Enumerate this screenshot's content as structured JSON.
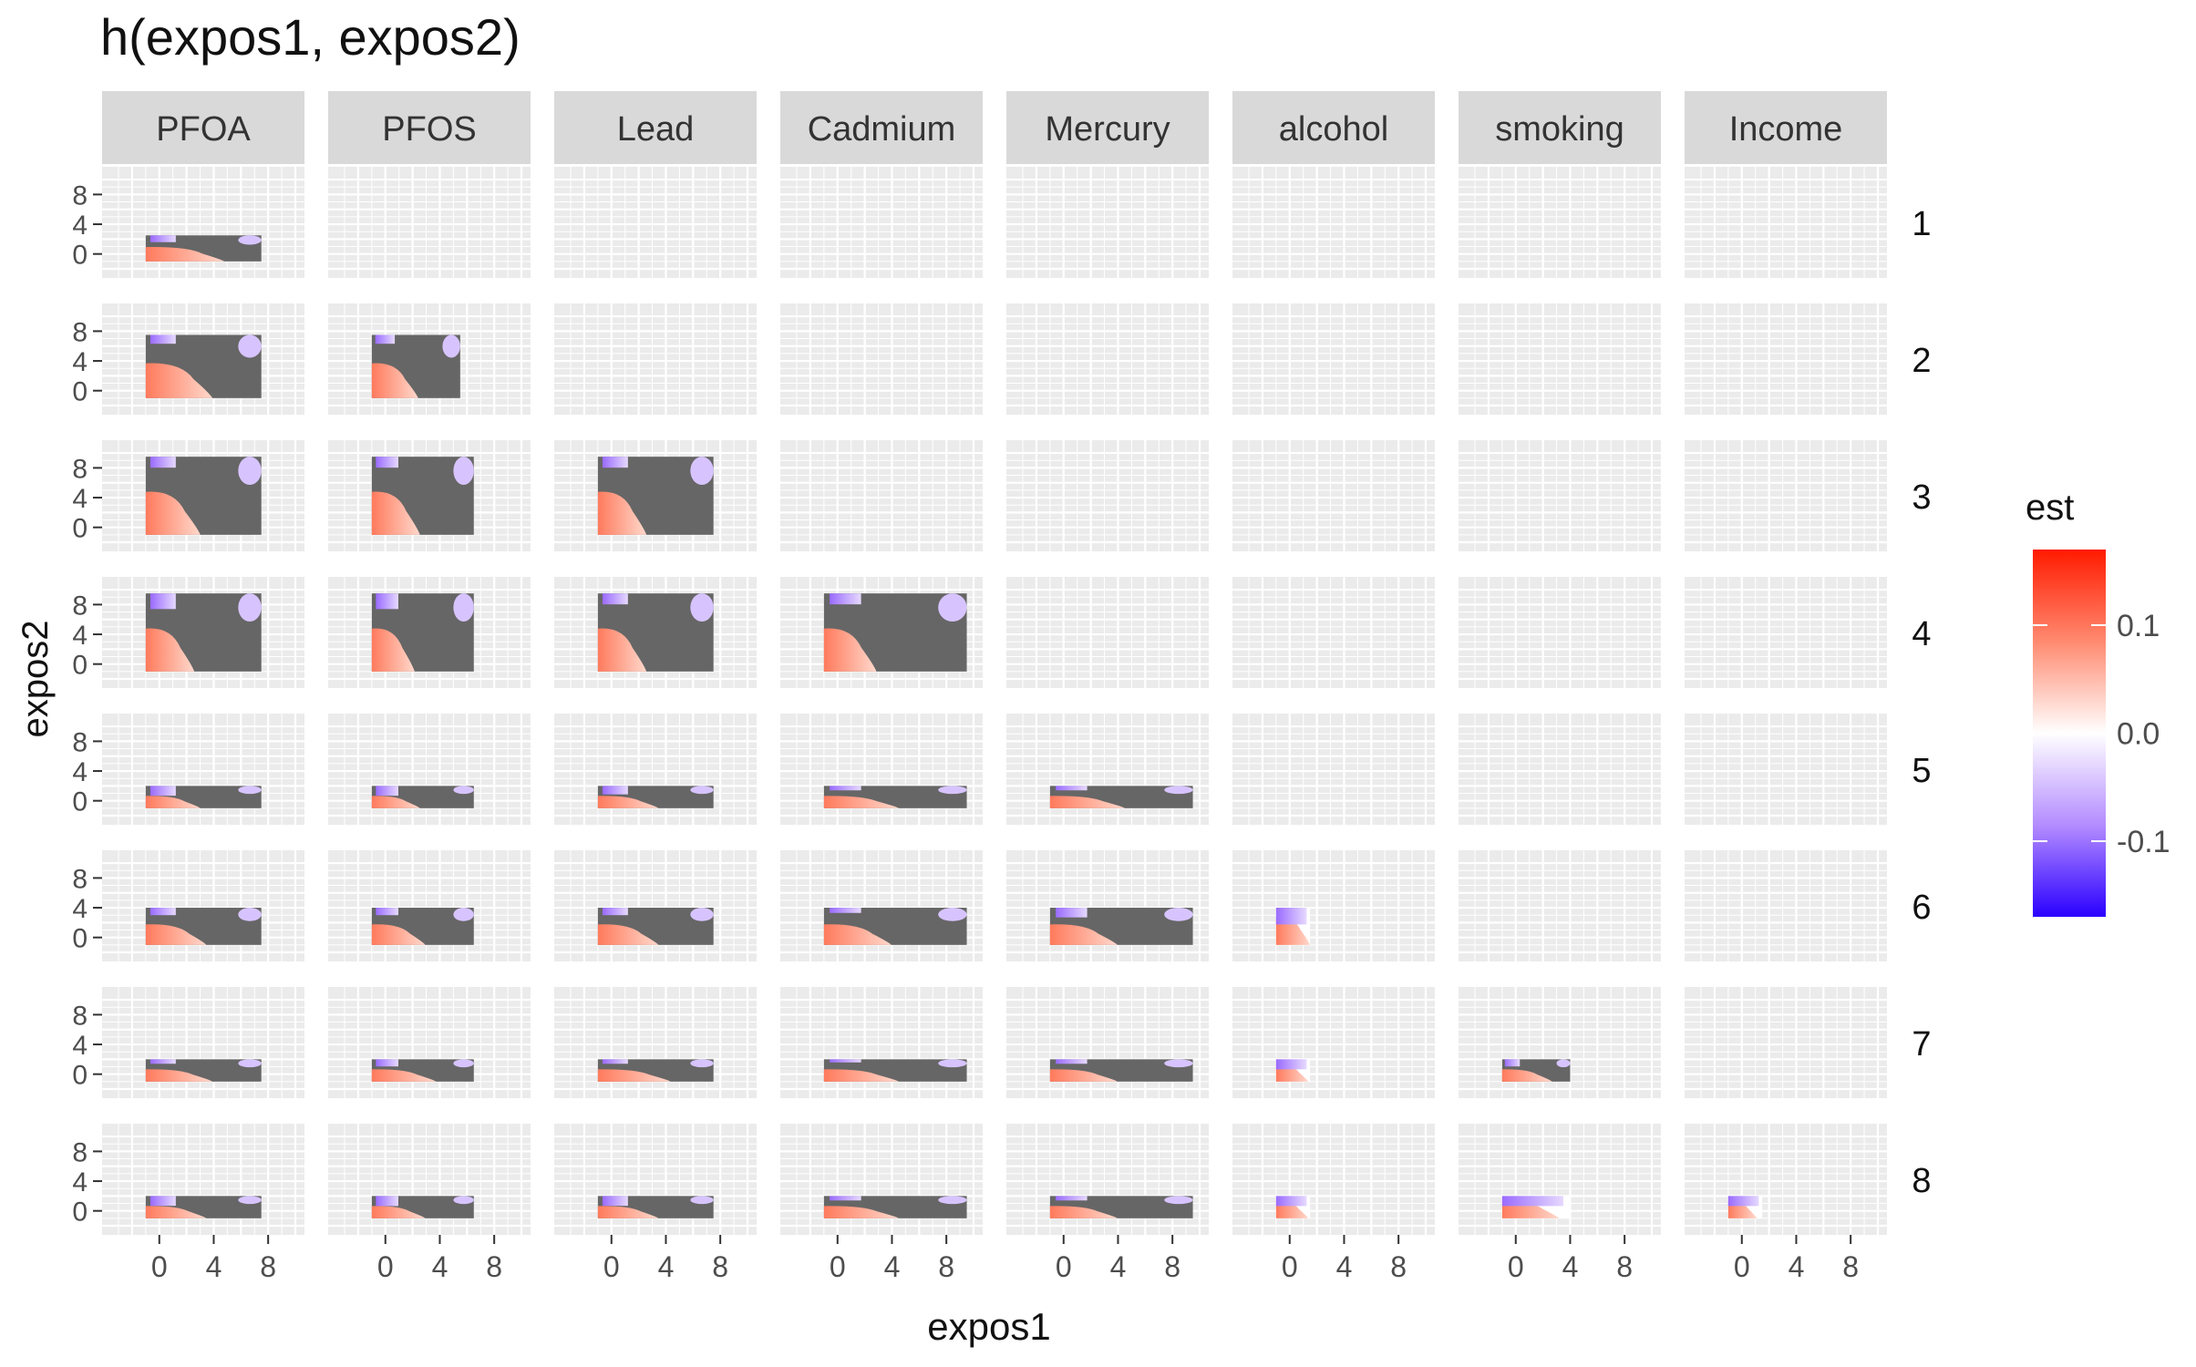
{
  "chart_data": {
    "type": "heatmap",
    "title": "h(expos1, expos2)",
    "xlabel": "expos1",
    "ylabel": "expos2",
    "column_labels": [
      "PFOA",
      "PFOS",
      "Lead",
      "Cadmium",
      "Mercury",
      "alcohol",
      "smoking",
      "Income"
    ],
    "row_labels": [
      "1",
      "2",
      "3",
      "4",
      "5",
      "6",
      "7",
      "8"
    ],
    "x_ticks": [
      "0",
      "4",
      "8"
    ],
    "y_ticks": [
      "8",
      "4",
      "0"
    ],
    "xlim": [
      -3,
      10
    ],
    "ylim": [
      -2,
      10.5
    ],
    "grid": true,
    "legend": {
      "title": "est",
      "position": "right",
      "ticks": [
        {
          "label": "0.1",
          "value": 0.1
        },
        {
          "label": "0.0",
          "value": 0.0
        },
        {
          "label": "-0.1",
          "value": -0.1
        }
      ],
      "range": [
        -0.17,
        0.17
      ],
      "colors": {
        "low": "#2a00ff",
        "mid": "#ffffff",
        "high": "#ff1a00"
      }
    },
    "na_color": "#666666",
    "panels": [
      {
        "row": 1,
        "col": 1,
        "x_range": [
          -1,
          7.5
        ],
        "y_range": [
          -1,
          2.5
        ],
        "pink": 0.55,
        "purple": 0.15,
        "gray": 0.3
      },
      {
        "row": 2,
        "col": 1,
        "x_range": [
          -1,
          7.5
        ],
        "y_range": [
          -1,
          7.5
        ],
        "pink": 0.45,
        "purple": 0.05,
        "gray": 0.5
      },
      {
        "row": 2,
        "col": 2,
        "x_range": [
          -1,
          5.5
        ],
        "y_range": [
          -1,
          7.5
        ],
        "pink": 0.4,
        "purple": 0.05,
        "gray": 0.55
      },
      {
        "row": 3,
        "col": 1,
        "x_range": [
          -1,
          7.5
        ],
        "y_range": [
          -1,
          9.5
        ],
        "pink": 0.35,
        "purple": 0.05,
        "gray": 0.6
      },
      {
        "row": 3,
        "col": 2,
        "x_range": [
          -1,
          6.5
        ],
        "y_range": [
          -1,
          9.5
        ],
        "pink": 0.35,
        "purple": 0.05,
        "gray": 0.6
      },
      {
        "row": 3,
        "col": 3,
        "x_range": [
          -1,
          7.5
        ],
        "y_range": [
          -1,
          9.5
        ],
        "pink": 0.3,
        "purple": 0.05,
        "gray": 0.65
      },
      {
        "row": 4,
        "col": 1,
        "x_range": [
          -1,
          7.5
        ],
        "y_range": [
          -1,
          9.5
        ],
        "pink": 0.3,
        "purple": 0.1,
        "gray": 0.6
      },
      {
        "row": 4,
        "col": 2,
        "x_range": [
          -1,
          6.5
        ],
        "y_range": [
          -1,
          9.5
        ],
        "pink": 0.3,
        "purple": 0.1,
        "gray": 0.6
      },
      {
        "row": 4,
        "col": 3,
        "x_range": [
          -1,
          7.5
        ],
        "y_range": [
          -1,
          9.5
        ],
        "pink": 0.3,
        "purple": 0.05,
        "gray": 0.65
      },
      {
        "row": 4,
        "col": 4,
        "x_range": [
          -1,
          9.5
        ],
        "y_range": [
          -1,
          9.5
        ],
        "pink": 0.25,
        "purple": 0.05,
        "gray": 0.7
      },
      {
        "row": 5,
        "col": 1,
        "x_range": [
          -1,
          7.5
        ],
        "y_range": [
          -1,
          2
        ],
        "pink": 0.35,
        "purple": 0.3,
        "gray": 0.35
      },
      {
        "row": 5,
        "col": 2,
        "x_range": [
          -1,
          6.5
        ],
        "y_range": [
          -1,
          2
        ],
        "pink": 0.35,
        "purple": 0.3,
        "gray": 0.35
      },
      {
        "row": 5,
        "col": 3,
        "x_range": [
          -1,
          7.5
        ],
        "y_range": [
          -1,
          2
        ],
        "pink": 0.4,
        "purple": 0.25,
        "gray": 0.35
      },
      {
        "row": 5,
        "col": 4,
        "x_range": [
          -1,
          9.5
        ],
        "y_range": [
          -1,
          2
        ],
        "pink": 0.4,
        "purple": 0.1,
        "gray": 0.5
      },
      {
        "row": 5,
        "col": 5,
        "x_range": [
          -1,
          9.5
        ],
        "y_range": [
          -1,
          2
        ],
        "pink": 0.4,
        "purple": 0.1,
        "gray": 0.5
      },
      {
        "row": 6,
        "col": 1,
        "x_range": [
          -1,
          7.5
        ],
        "y_range": [
          -1,
          4
        ],
        "pink": 0.4,
        "purple": 0.1,
        "gray": 0.5
      },
      {
        "row": 6,
        "col": 2,
        "x_range": [
          -1,
          6.5
        ],
        "y_range": [
          -1,
          4
        ],
        "pink": 0.4,
        "purple": 0.1,
        "gray": 0.5
      },
      {
        "row": 6,
        "col": 3,
        "x_range": [
          -1,
          7.5
        ],
        "y_range": [
          -1,
          4
        ],
        "pink": 0.4,
        "purple": 0.1,
        "gray": 0.5
      },
      {
        "row": 6,
        "col": 4,
        "x_range": [
          -1,
          9.5
        ],
        "y_range": [
          -1,
          4
        ],
        "pink": 0.35,
        "purple": 0.05,
        "gray": 0.6
      },
      {
        "row": 6,
        "col": 5,
        "x_range": [
          -1,
          9.5
        ],
        "y_range": [
          -1,
          4
        ],
        "pink": 0.35,
        "purple": 0.15,
        "gray": 0.5
      },
      {
        "row": 6,
        "col": 6,
        "x_range": [
          -1,
          1.5
        ],
        "y_range": [
          -1,
          4
        ],
        "pink": 0.65,
        "purple": 0.35,
        "gray": 0.0
      },
      {
        "row": 7,
        "col": 1,
        "x_range": [
          -1,
          7.5
        ],
        "y_range": [
          -1,
          2
        ],
        "pink": 0.45,
        "purple": 0.1,
        "gray": 0.45
      },
      {
        "row": 7,
        "col": 2,
        "x_range": [
          -1,
          6.5
        ],
        "y_range": [
          -1,
          2
        ],
        "pink": 0.5,
        "purple": 0.2,
        "gray": 0.3
      },
      {
        "row": 7,
        "col": 3,
        "x_range": [
          -1,
          7.5
        ],
        "y_range": [
          -1,
          2
        ],
        "pink": 0.5,
        "purple": 0.1,
        "gray": 0.4
      },
      {
        "row": 7,
        "col": 4,
        "x_range": [
          -1,
          9.5
        ],
        "y_range": [
          -1,
          2
        ],
        "pink": 0.4,
        "purple": 0.05,
        "gray": 0.55
      },
      {
        "row": 7,
        "col": 5,
        "x_range": [
          -1,
          9.5
        ],
        "y_range": [
          -1,
          2
        ],
        "pink": 0.35,
        "purple": 0.1,
        "gray": 0.55
      },
      {
        "row": 7,
        "col": 6,
        "x_range": [
          -1,
          1.5
        ],
        "y_range": [
          -1,
          2
        ],
        "pink": 0.6,
        "purple": 0.4,
        "gray": 0.0
      },
      {
        "row": 7,
        "col": 7,
        "x_range": [
          -1,
          4
        ],
        "y_range": [
          -1,
          2
        ],
        "pink": 0.6,
        "purple": 0.2,
        "gray": 0.2
      },
      {
        "row": 8,
        "col": 1,
        "x_range": [
          -1,
          7.5
        ],
        "y_range": [
          -1,
          2
        ],
        "pink": 0.4,
        "purple": 0.3,
        "gray": 0.3
      },
      {
        "row": 8,
        "col": 2,
        "x_range": [
          -1,
          6.5
        ],
        "y_range": [
          -1,
          2
        ],
        "pink": 0.4,
        "purple": 0.4,
        "gray": 0.2
      },
      {
        "row": 8,
        "col": 3,
        "x_range": [
          -1,
          7.5
        ],
        "y_range": [
          -1,
          2
        ],
        "pink": 0.4,
        "purple": 0.3,
        "gray": 0.3
      },
      {
        "row": 8,
        "col": 4,
        "x_range": [
          -1,
          9.5
        ],
        "y_range": [
          -1,
          2
        ],
        "pink": 0.4,
        "purple": 0.1,
        "gray": 0.5
      },
      {
        "row": 8,
        "col": 5,
        "x_range": [
          -1,
          9.5
        ],
        "y_range": [
          -1,
          2
        ],
        "pink": 0.35,
        "purple": 0.1,
        "gray": 0.55
      },
      {
        "row": 8,
        "col": 6,
        "x_range": [
          -1,
          1.5
        ],
        "y_range": [
          -1,
          2
        ],
        "pink": 0.6,
        "purple": 0.4,
        "gray": 0.0
      },
      {
        "row": 8,
        "col": 7,
        "x_range": [
          -1,
          4
        ],
        "y_range": [
          -1,
          2
        ],
        "pink": 0.5,
        "purple": 0.5,
        "gray": 0.0
      },
      {
        "row": 8,
        "col": 8,
        "x_range": [
          -1,
          1.5
        ],
        "y_range": [
          -1,
          2
        ],
        "pink": 0.5,
        "purple": 0.5,
        "gray": 0.0
      }
    ]
  }
}
